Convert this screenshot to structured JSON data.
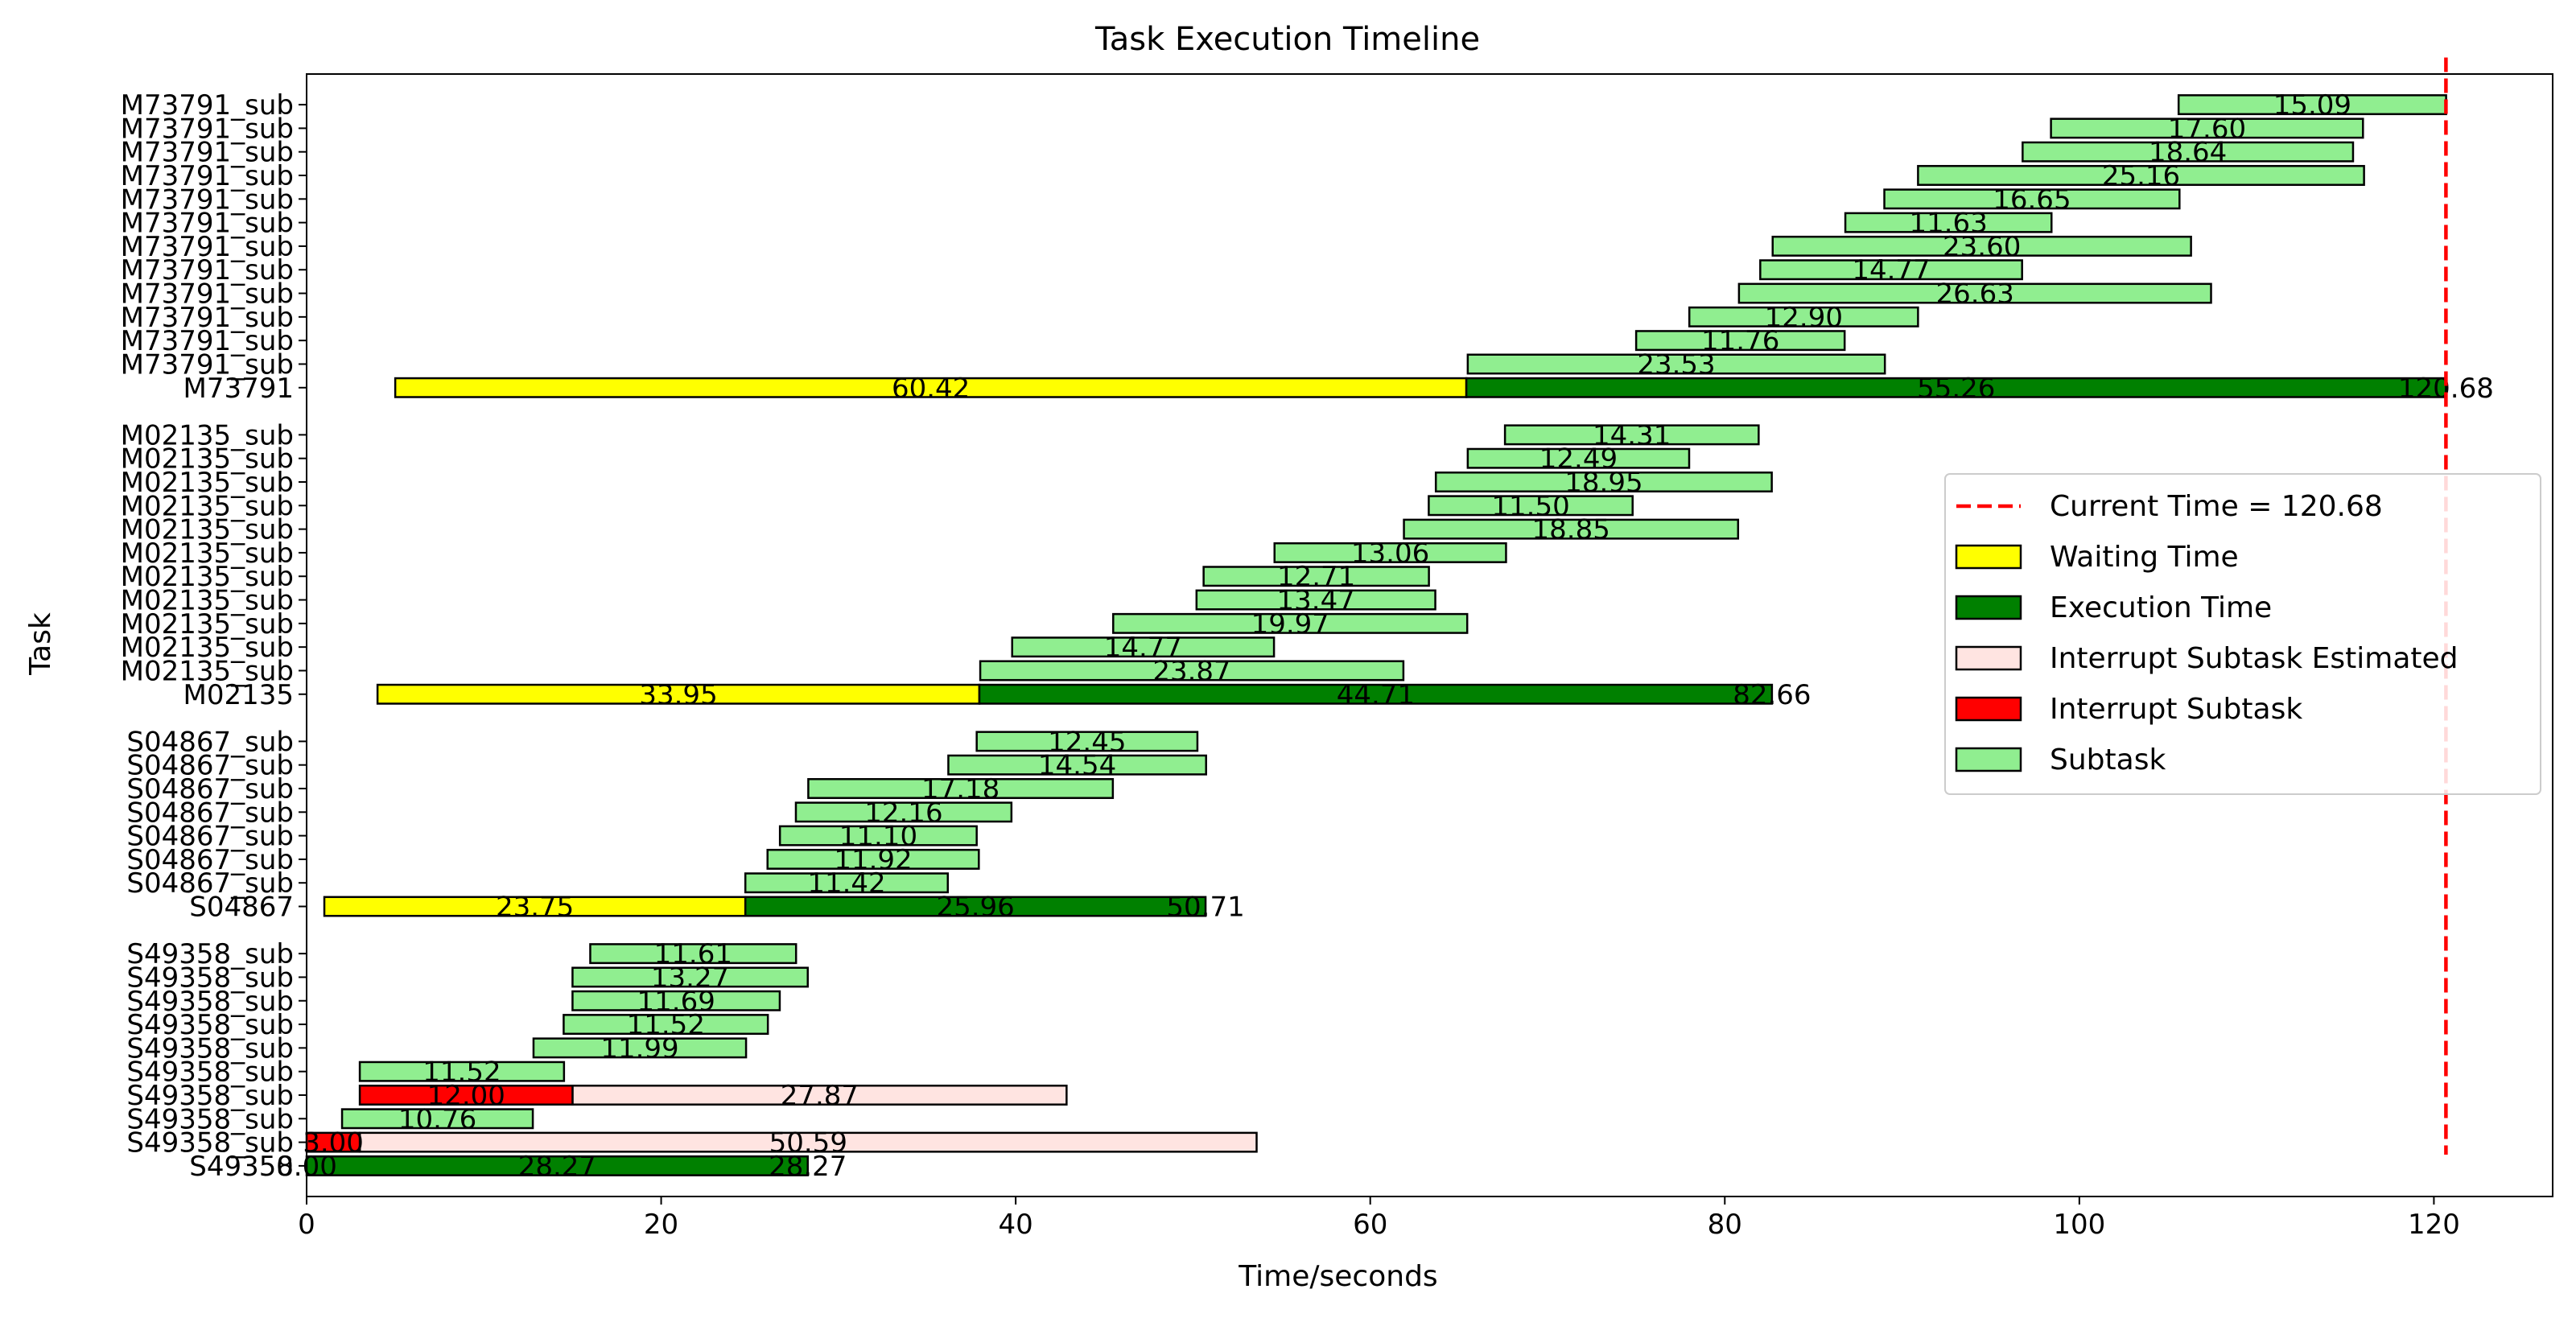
{
  "chart_data": {
    "type": "gantt",
    "title": "Task Execution Timeline",
    "xlabel": "Time/seconds",
    "ylabel": "Task",
    "xlim": [
      0,
      126.7
    ],
    "xticks": [
      0,
      20,
      40,
      60,
      80,
      100,
      120
    ],
    "current_time": 120.68,
    "colors": {
      "waiting": "#ffff00",
      "execution": "#008000",
      "interrupt_estimated": "#ffe4e1",
      "interrupt": "#ff0000",
      "subtask": "#90ee90",
      "current_line": "#ff0000"
    },
    "legend": {
      "position": "right",
      "items": [
        {
          "type": "line",
          "color_key": "current_line",
          "label": "Current Time = 120.68"
        },
        {
          "type": "patch",
          "color_key": "waiting",
          "label": "Waiting Time"
        },
        {
          "type": "patch",
          "color_key": "execution",
          "label": "Execution Time"
        },
        {
          "type": "patch",
          "color_key": "interrupt_estimated",
          "label": "Interrupt Subtask Estimated"
        },
        {
          "type": "patch",
          "color_key": "interrupt",
          "label": "Interrupt Subtask"
        },
        {
          "type": "patch",
          "color_key": "subtask",
          "label": "Subtask"
        }
      ]
    },
    "rows": [
      {
        "label": "S49358",
        "segments": [
          {
            "kind": "waiting",
            "start": 0,
            "end": 0,
            "label": "0.00"
          },
          {
            "kind": "execution",
            "start": 0,
            "end": 28.27,
            "label": "28.27"
          }
        ],
        "end_label": "28.27"
      },
      {
        "label": "S49358_sub",
        "segments": [
          {
            "kind": "interrupt_estimated",
            "start": 3.0,
            "end": 53.59,
            "label": "50.59"
          },
          {
            "kind": "interrupt",
            "start": 0,
            "end": 3.0,
            "label": "3.00"
          }
        ]
      },
      {
        "label": "S49358_sub",
        "segments": [
          {
            "kind": "subtask",
            "start": 2.0,
            "end": 12.76,
            "label": "10.76"
          }
        ]
      },
      {
        "label": "S49358_sub",
        "segments": [
          {
            "kind": "interrupt_estimated",
            "start": 15.0,
            "end": 42.87,
            "label": "27.87"
          },
          {
            "kind": "interrupt",
            "start": 3.0,
            "end": 15.0,
            "label": "12.00"
          }
        ]
      },
      {
        "label": "S49358_sub",
        "segments": [
          {
            "kind": "subtask",
            "start": 3.0,
            "end": 14.52,
            "label": "11.52"
          }
        ]
      },
      {
        "label": "S49358_sub",
        "segments": [
          {
            "kind": "subtask",
            "start": 12.8,
            "end": 24.79,
            "label": "11.99"
          }
        ]
      },
      {
        "label": "S49358_sub",
        "segments": [
          {
            "kind": "subtask",
            "start": 14.5,
            "end": 26.02,
            "label": "11.52"
          }
        ]
      },
      {
        "label": "S49358_sub",
        "segments": [
          {
            "kind": "subtask",
            "start": 15.0,
            "end": 26.69,
            "label": "11.69"
          }
        ]
      },
      {
        "label": "S49358_sub",
        "segments": [
          {
            "kind": "subtask",
            "start": 15.0,
            "end": 28.27,
            "label": "13.27"
          }
        ]
      },
      {
        "label": "S49358_sub",
        "segments": [
          {
            "kind": "subtask",
            "start": 16.0,
            "end": 27.61,
            "label": "11.61"
          }
        ]
      },
      {
        "label": "S04867",
        "segments": [
          {
            "kind": "waiting",
            "start": 1.0,
            "end": 24.75,
            "label": "23.75"
          },
          {
            "kind": "execution",
            "start": 24.75,
            "end": 50.71,
            "label": "25.96"
          }
        ],
        "end_label": "50.71"
      },
      {
        "label": "S04867_sub",
        "segments": [
          {
            "kind": "subtask",
            "start": 24.75,
            "end": 36.17,
            "label": "11.42"
          }
        ]
      },
      {
        "label": "S04867_sub",
        "segments": [
          {
            "kind": "subtask",
            "start": 26.0,
            "end": 37.92,
            "label": "11.92"
          }
        ]
      },
      {
        "label": "S04867_sub",
        "segments": [
          {
            "kind": "subtask",
            "start": 26.7,
            "end": 37.8,
            "label": "11.10"
          }
        ]
      },
      {
        "label": "S04867_sub",
        "segments": [
          {
            "kind": "subtask",
            "start": 27.6,
            "end": 39.76,
            "label": "12.16"
          }
        ]
      },
      {
        "label": "S04867_sub",
        "segments": [
          {
            "kind": "subtask",
            "start": 28.3,
            "end": 45.48,
            "label": "17.18"
          }
        ]
      },
      {
        "label": "S04867_sub",
        "segments": [
          {
            "kind": "subtask",
            "start": 36.2,
            "end": 50.74,
            "label": "14.54"
          }
        ]
      },
      {
        "label": "S04867_sub",
        "segments": [
          {
            "kind": "subtask",
            "start": 37.8,
            "end": 50.25,
            "label": "12.45"
          }
        ]
      },
      {
        "label": "M02135",
        "segments": [
          {
            "kind": "waiting",
            "start": 4.0,
            "end": 37.95,
            "label": "33.95"
          },
          {
            "kind": "execution",
            "start": 37.95,
            "end": 82.66,
            "label": "44.71"
          }
        ],
        "end_label": "82.66"
      },
      {
        "label": "M02135_sub",
        "segments": [
          {
            "kind": "subtask",
            "start": 38.0,
            "end": 61.87,
            "label": "23.87"
          }
        ]
      },
      {
        "label": "M02135_sub",
        "segments": [
          {
            "kind": "subtask",
            "start": 39.8,
            "end": 54.57,
            "label": "14.77"
          }
        ]
      },
      {
        "label": "M02135_sub",
        "segments": [
          {
            "kind": "subtask",
            "start": 45.5,
            "end": 65.47,
            "label": "19.97"
          }
        ]
      },
      {
        "label": "M02135_sub",
        "segments": [
          {
            "kind": "subtask",
            "start": 50.2,
            "end": 63.67,
            "label": "13.47"
          }
        ]
      },
      {
        "label": "M02135_sub",
        "segments": [
          {
            "kind": "subtask",
            "start": 50.6,
            "end": 63.31,
            "label": "12.71"
          }
        ]
      },
      {
        "label": "M02135_sub",
        "segments": [
          {
            "kind": "subtask",
            "start": 54.6,
            "end": 67.66,
            "label": "13.06"
          }
        ]
      },
      {
        "label": "M02135_sub",
        "segments": [
          {
            "kind": "subtask",
            "start": 61.9,
            "end": 80.75,
            "label": "18.85"
          }
        ]
      },
      {
        "label": "M02135_sub",
        "segments": [
          {
            "kind": "subtask",
            "start": 63.3,
            "end": 74.8,
            "label": "11.50"
          }
        ]
      },
      {
        "label": "M02135_sub",
        "segments": [
          {
            "kind": "subtask",
            "start": 63.7,
            "end": 82.65,
            "label": "18.95"
          }
        ]
      },
      {
        "label": "M02135_sub",
        "segments": [
          {
            "kind": "subtask",
            "start": 65.5,
            "end": 77.99,
            "label": "12.49"
          }
        ]
      },
      {
        "label": "M02135_sub",
        "segments": [
          {
            "kind": "subtask",
            "start": 67.6,
            "end": 81.91,
            "label": "14.31"
          }
        ]
      },
      {
        "label": "M73791",
        "segments": [
          {
            "kind": "waiting",
            "start": 5.0,
            "end": 65.42,
            "label": "60.42"
          },
          {
            "kind": "execution",
            "start": 65.42,
            "end": 120.68,
            "label": "55.26"
          }
        ],
        "end_label": "120.68"
      },
      {
        "label": "M73791_sub",
        "segments": [
          {
            "kind": "subtask",
            "start": 65.5,
            "end": 89.03,
            "label": "23.53"
          }
        ]
      },
      {
        "label": "M73791_sub",
        "segments": [
          {
            "kind": "subtask",
            "start": 75.0,
            "end": 86.76,
            "label": "11.76"
          }
        ]
      },
      {
        "label": "M73791_sub",
        "segments": [
          {
            "kind": "subtask",
            "start": 78.0,
            "end": 90.9,
            "label": "12.90"
          }
        ]
      },
      {
        "label": "M73791_sub",
        "segments": [
          {
            "kind": "subtask",
            "start": 80.8,
            "end": 107.43,
            "label": "26.63"
          }
        ]
      },
      {
        "label": "M73791_sub",
        "segments": [
          {
            "kind": "subtask",
            "start": 82.0,
            "end": 96.77,
            "label": "14.77"
          }
        ]
      },
      {
        "label": "M73791_sub",
        "segments": [
          {
            "kind": "subtask",
            "start": 82.7,
            "end": 106.3,
            "label": "23.60"
          }
        ]
      },
      {
        "label": "M73791_sub",
        "segments": [
          {
            "kind": "subtask",
            "start": 86.8,
            "end": 98.43,
            "label": "11.63"
          }
        ]
      },
      {
        "label": "M73791_sub",
        "segments": [
          {
            "kind": "subtask",
            "start": 89.0,
            "end": 105.65,
            "label": "16.65"
          }
        ]
      },
      {
        "label": "M73791_sub",
        "segments": [
          {
            "kind": "subtask",
            "start": 90.9,
            "end": 116.06,
            "label": "25.16"
          }
        ]
      },
      {
        "label": "M73791_sub",
        "segments": [
          {
            "kind": "subtask",
            "start": 96.8,
            "end": 115.44,
            "label": "18.64"
          }
        ]
      },
      {
        "label": "M73791_sub",
        "segments": [
          {
            "kind": "subtask",
            "start": 98.4,
            "end": 116.0,
            "label": "17.60"
          }
        ]
      },
      {
        "label": "M73791_sub",
        "segments": [
          {
            "kind": "subtask",
            "start": 105.6,
            "end": 120.69,
            "label": "15.09"
          }
        ]
      }
    ]
  }
}
